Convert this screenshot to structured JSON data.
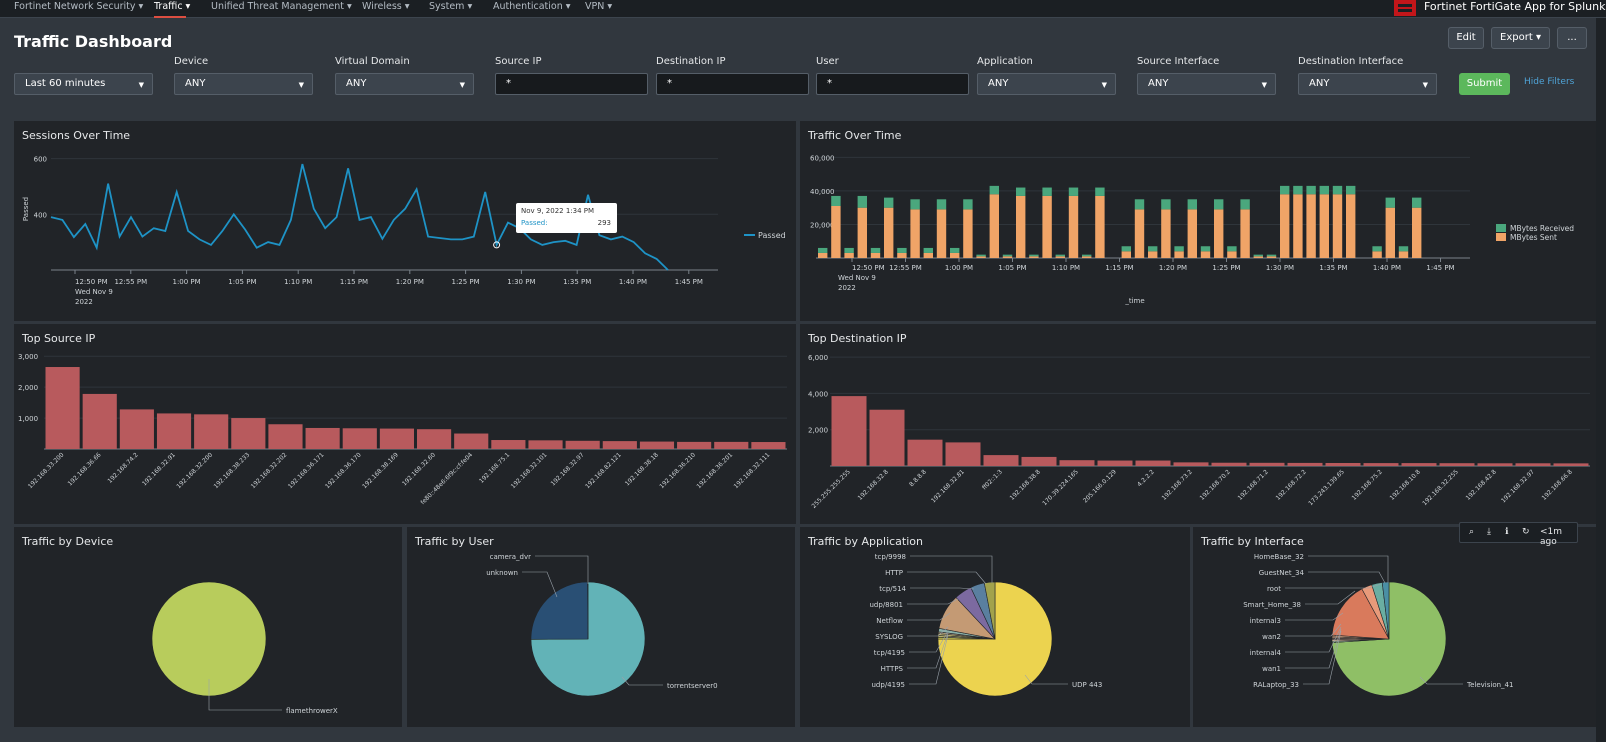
{
  "nav": [
    {
      "label": "Fortinet Network Security ▾",
      "active": false
    },
    {
      "label": "Traffic ▾",
      "active": true
    },
    {
      "label": "Unified Threat Management ▾",
      "active": false
    },
    {
      "label": "Wireless ▾",
      "active": false
    },
    {
      "label": "System ▾",
      "active": false
    },
    {
      "label": "Authentication ▾",
      "active": false
    },
    {
      "label": "VPN ▾",
      "active": false
    }
  ],
  "app_title": "Fortinet FortiGate App for Splunk",
  "dashboard": {
    "title": "Traffic Dashboard",
    "edit": "Edit",
    "export": "Export ▾",
    "more": "..."
  },
  "filters": {
    "time": {
      "value": "Last 60 minutes"
    },
    "device": {
      "label": "Device",
      "value": "ANY"
    },
    "vdom": {
      "label": "Virtual Domain",
      "value": "ANY"
    },
    "srcip": {
      "label": "Source IP",
      "value": "*"
    },
    "dstip": {
      "label": "Destination IP",
      "value": "*"
    },
    "user": {
      "label": "User",
      "value": "*"
    },
    "app": {
      "label": "Application",
      "value": "ANY"
    },
    "srcint": {
      "label": "Source Interface",
      "value": "ANY"
    },
    "dstint": {
      "label": "Destination Interface",
      "value": "ANY"
    },
    "submit": "Submit",
    "hide": "Hide Filters"
  },
  "colors": {
    "line": "#1e93c6",
    "bar": "#b85a5d",
    "received": "#4aa77d",
    "sent": "#f0a467",
    "device_pie": "#b8cc5c",
    "user_major": "#62b3b7",
    "user_minor": "#294f74",
    "app_major": "#ecd34f",
    "iface_major": "#8fbf66"
  },
  "panels": {
    "sessions": {
      "title": "Sessions Over Time"
    },
    "traffic": {
      "title": "Traffic Over Time"
    },
    "top_src": {
      "title": "Top Source IP"
    },
    "top_dst": {
      "title": "Top Destination IP"
    },
    "by_device": {
      "title": "Traffic by Device"
    },
    "by_user": {
      "title": "Traffic by User"
    },
    "by_app": {
      "title": "Traffic by Application"
    },
    "by_iface": {
      "title": "Traffic by Interface"
    }
  },
  "toolbar": {
    "refresh_age": "<1m ago",
    "icons": [
      "search-icon",
      "download-icon",
      "info-icon",
      "refresh-icon"
    ]
  },
  "chart_data": [
    {
      "id": "sessions",
      "type": "line",
      "ylabel": "Passed",
      "yticks": [
        "600",
        "400"
      ],
      "ylim": [
        200,
        620
      ],
      "xticks": [
        "12:50 PM",
        "12:55 PM",
        "1:00 PM",
        "1:05 PM",
        "1:10 PM",
        "1:15 PM",
        "1:20 PM",
        "1:25 PM",
        "1:30 PM",
        "1:35 PM",
        "1:40 PM",
        "1:45 PM"
      ],
      "xticks_sub": [
        "Wed Nov 9",
        "2022"
      ],
      "series": [
        {
          "name": "Passed",
          "values": [
            390,
            380,
            318,
            365,
            280,
            510,
            320,
            390,
            320,
            350,
            340,
            480,
            340,
            310,
            290,
            340,
            400,
            345,
            280,
            300,
            290,
            380,
            580,
            420,
            350,
            390,
            565,
            380,
            390,
            312,
            380,
            420,
            490,
            320,
            315,
            310,
            310,
            320,
            480,
            290,
            370,
            350,
            310,
            290,
            300,
            305,
            290,
            470,
            325,
            310,
            320,
            300,
            260,
            240,
            200
          ]
        }
      ],
      "tooltip": {
        "title": "Nov 9, 2022 1:34 PM",
        "label": "Passed:",
        "value": "293"
      }
    },
    {
      "id": "traffic",
      "type": "bar",
      "stacked": true,
      "xlabel": "_time",
      "yticks": [
        "60,000",
        "40,000",
        "20,000"
      ],
      "ylim": [
        0,
        62000
      ],
      "xticks": [
        "12:50 PM",
        "12:55 PM",
        "1:00 PM",
        "1:05 PM",
        "1:10 PM",
        "1:15 PM",
        "1:20 PM",
        "1:25 PM",
        "1:30 PM",
        "1:35 PM",
        "1:40 PM",
        "1:45 PM"
      ],
      "xticks_sub": [
        "Wed Nov 9",
        "2022"
      ],
      "series": [
        {
          "name": "MBytes Sent",
          "values": [
            3000,
            31000,
            3000,
            30000,
            3000,
            30000,
            3000,
            29000,
            3000,
            29000,
            3000,
            29000,
            1000,
            38000,
            1000,
            37000,
            1000,
            37000,
            1000,
            37000,
            1000,
            37000,
            0,
            4000,
            29000,
            4000,
            29000,
            4000,
            29000,
            4000,
            29000,
            4000,
            29000,
            1000,
            1000,
            38000,
            38000,
            38000,
            38000,
            38000,
            38000,
            0,
            4000,
            30000,
            4000,
            30000
          ]
        },
        {
          "name": "MBytes Received",
          "values": [
            3000,
            6000,
            3000,
            7000,
            3000,
            6000,
            3000,
            6000,
            3000,
            6000,
            3000,
            6000,
            1000,
            5000,
            1000,
            5000,
            1000,
            5000,
            1000,
            5000,
            1000,
            5000,
            0,
            3000,
            6000,
            3000,
            6000,
            3000,
            6000,
            3000,
            6000,
            3000,
            6000,
            1000,
            1000,
            5000,
            5000,
            5000,
            5000,
            5000,
            5000,
            0,
            3000,
            6000,
            3000,
            6000
          ]
        }
      ]
    },
    {
      "id": "top_src",
      "type": "bar",
      "yticks": [
        "3,000",
        "2,000",
        "1,000"
      ],
      "ylim": [
        0,
        3200
      ],
      "categories": [
        "192.168.33.200",
        "192.168.36.66",
        "192.168.74.2",
        "192.168.32.91",
        "192.168.32.200",
        "192.168.38.233",
        "192.168.32.202",
        "192.168.36.171",
        "192.168.36.170",
        "192.168.38.169",
        "192.168.32.60",
        "fe80::48e6:6f9c:cf:fe04",
        "192.168.75.1",
        "192.168.32.101",
        "192.168.32.97",
        "192.168.82.121",
        "192.168.38.18",
        "192.168.36.210",
        "192.168.36.201",
        "192.168.32.111"
      ],
      "values": [
        2650,
        1780,
        1280,
        1150,
        1120,
        1000,
        800,
        680,
        670,
        660,
        640,
        500,
        290,
        280,
        265,
        255,
        240,
        230,
        230,
        225
      ]
    },
    {
      "id": "top_dst",
      "type": "bar",
      "yticks": [
        "6,000",
        "4,000",
        "2,000"
      ],
      "ylim": [
        0,
        6500
      ],
      "categories": [
        "255.255.255.255",
        "192.168.32.8",
        "8.8.8.8",
        "192.168.32.81",
        "ff02::1:3",
        "192.168.38.8",
        "170.39.224.165",
        "205.166.0.129",
        "4.2.2.2",
        "192.168.73.2",
        "192.168.70.2",
        "192.168.71.2",
        "192.168.72.2",
        "173.243.139.65",
        "192.168.75.2",
        "192.168.10.8",
        "192.168.32.255",
        "192.168.42.8",
        "192.168.32.97",
        "192.168.66.8"
      ],
      "values": [
        3850,
        3100,
        1450,
        1300,
        600,
        500,
        320,
        300,
        300,
        200,
        180,
        175,
        170,
        165,
        160,
        160,
        155,
        150,
        150,
        145
      ]
    },
    {
      "id": "by_device",
      "type": "pie",
      "labels": [
        "flamethrowerX"
      ],
      "values": [
        100
      ]
    },
    {
      "id": "by_user",
      "type": "pie",
      "labels": [
        "torrentserver0",
        "unknown",
        "camera_dvr"
      ],
      "values": [
        74.9,
        25,
        0.1
      ]
    },
    {
      "id": "by_app",
      "type": "pie",
      "labels": [
        "UDP 443",
        "udp/4195",
        "HTTPS",
        "tcp/4195",
        "SYSLOG",
        "Netflow",
        "udp/8801",
        "tcp/514",
        "HTTP",
        "tcp/9998"
      ],
      "values": [
        75,
        0.5,
        0.5,
        0.5,
        0.5,
        1,
        10,
        5,
        4,
        3
      ]
    },
    {
      "id": "by_iface",
      "type": "pie",
      "labels": [
        "Television_41",
        "RALaptop_33",
        "wan1",
        "internal4",
        "wan2",
        "internal3",
        "Smart_Home_38",
        "root",
        "GuestNet_34",
        "HomeBase_32"
      ],
      "values": [
        74,
        0.4,
        0.4,
        0.4,
        0.4,
        0.5,
        16,
        3,
        3,
        1.9
      ]
    }
  ]
}
